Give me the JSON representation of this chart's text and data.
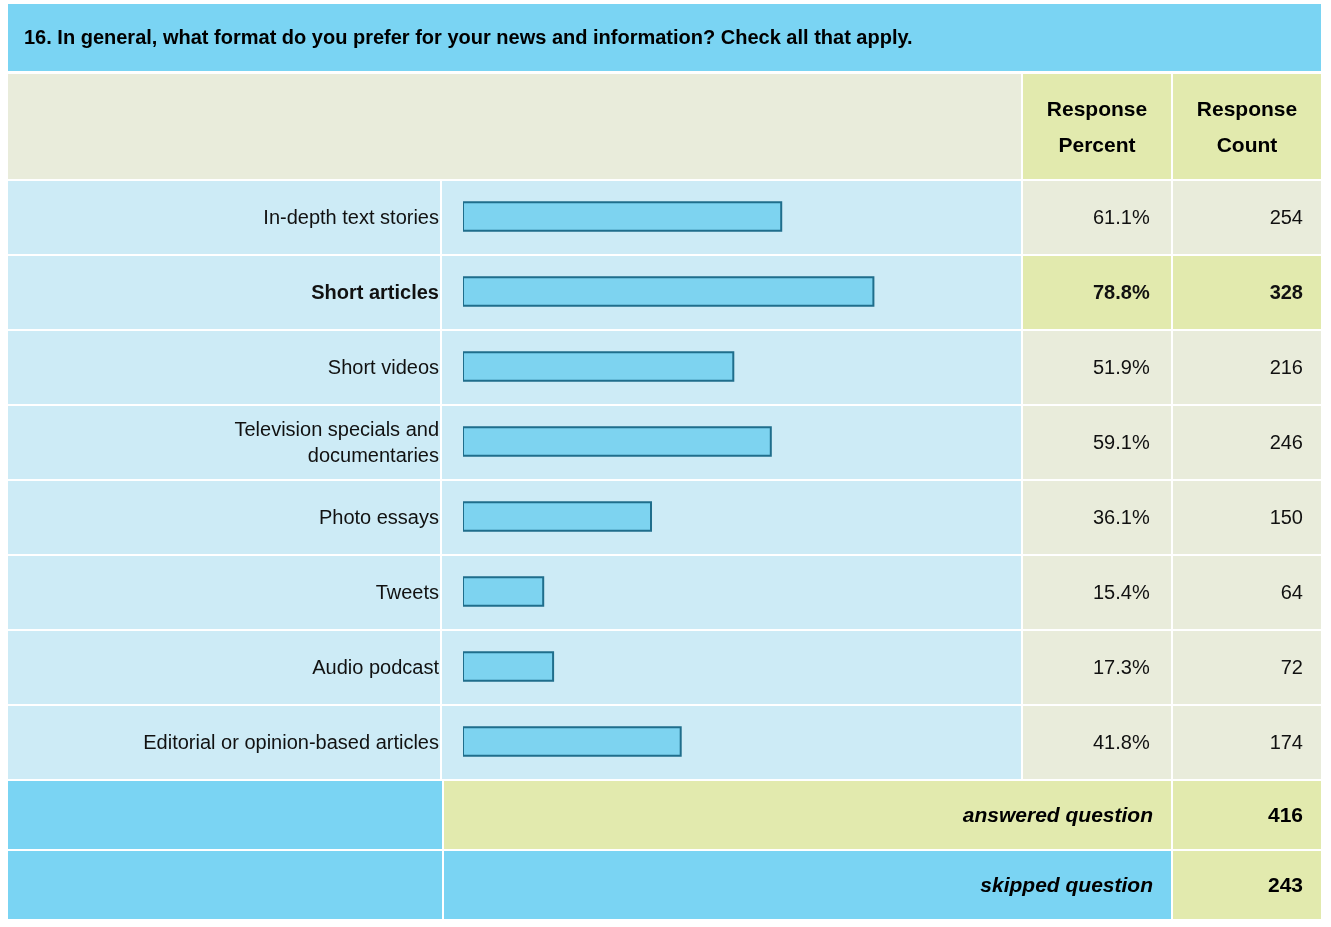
{
  "chart_data": {
    "type": "bar",
    "orientation": "horizontal",
    "title": "16. In general, what format do you prefer for your news and information? Check all that apply.",
    "categories": [
      "In-depth text stories",
      "Short articles",
      "Short videos",
      "Television specials and documentaries",
      "Photo essays",
      "Tweets",
      "Audio podcast",
      "Editorial or opinion-based articles"
    ],
    "values": [
      61.1,
      78.8,
      51.9,
      59.1,
      36.1,
      15.4,
      17.3,
      41.8
    ],
    "value_labels": [
      "61.1%",
      "78.8%",
      "51.9%",
      "59.1%",
      "36.1%",
      "15.4%",
      "17.3%",
      "41.8%"
    ],
    "color": "#7dd3f0",
    "tick_labels": "y",
    "grid": false,
    "legend": false,
    "annotations": [
      "Response Percent",
      "Response Count",
      "254",
      "328",
      "216",
      "246",
      "150",
      "64",
      "72",
      "174",
      "answered question",
      "416",
      "skipped question",
      "243"
    ]
  }
}
